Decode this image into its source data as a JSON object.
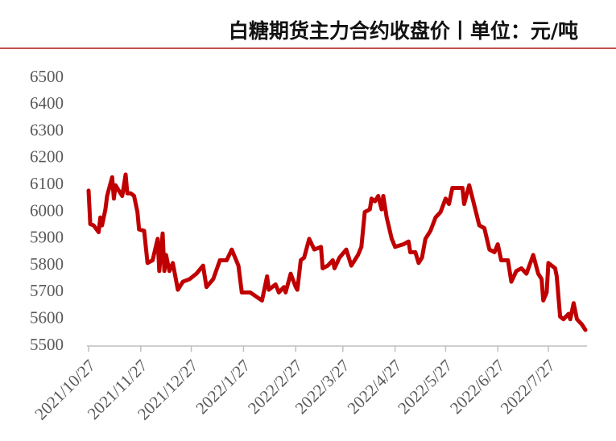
{
  "chart_data": {
    "type": "line",
    "title": "白糖期货主力合约收盘价丨单位：元/吨",
    "x": [
      "2021/10/27",
      "2021/10/28",
      "2021/10/30",
      "2021/11/2",
      "2021/11/3",
      "2021/11/4",
      "2021/11/6",
      "2021/11/7",
      "2021/11/10",
      "2021/11/11",
      "2021/11/12",
      "2021/11/14",
      "2021/11/16",
      "2021/11/18",
      "2021/11/19",
      "2021/11/21",
      "2021/11/23",
      "2021/11/25",
      "2021/11/26",
      "2021/11/29",
      "2021/12/1",
      "2021/12/4",
      "2021/12/7",
      "2021/12/8",
      "2021/12/10",
      "2021/12/11",
      "2021/12/12",
      "2021/12/14",
      "2021/12/16",
      "2021/12/19",
      "2021/12/22",
      "2021/12/26",
      "2021/12/30",
      "2022/1/3",
      "2022/1/5",
      "2022/1/9",
      "2022/1/13",
      "2022/1/17",
      "2022/1/20",
      "2022/1/24",
      "2022/1/26",
      "2022/1/31",
      "2022/2/7",
      "2022/2/10",
      "2022/2/11",
      "2022/2/15",
      "2022/2/17",
      "2022/2/20",
      "2022/2/21",
      "2022/2/24",
      "2022/2/27",
      "2022/2/28",
      "2022/3/2",
      "2022/3/4",
      "2022/3/7",
      "2022/3/10",
      "2022/3/14",
      "2022/3/15",
      "2022/3/18",
      "2022/3/21",
      "2022/3/22",
      "2022/3/25",
      "2022/3/29",
      "2022/4/1",
      "2022/4/5",
      "2022/4/7",
      "2022/4/9",
      "2022/4/12",
      "2022/4/13",
      "2022/4/15",
      "2022/4/17",
      "2022/4/19",
      "2022/4/20",
      "2022/4/22",
      "2022/4/25",
      "2022/4/27",
      "2022/5/2",
      "2022/5/5",
      "2022/5/6",
      "2022/5/9",
      "2022/5/11",
      "2022/5/13",
      "2022/5/15",
      "2022/5/18",
      "2022/5/21",
      "2022/5/24",
      "2022/5/27",
      "2022/5/29",
      "2022/5/31",
      "2022/6/6",
      "2022/6/7",
      "2022/6/10",
      "2022/6/12",
      "2022/6/14",
      "2022/6/16",
      "2022/6/19",
      "2022/6/22",
      "2022/6/25",
      "2022/6/27",
      "2022/6/29",
      "2022/7/3",
      "2022/7/5",
      "2022/7/8",
      "2022/7/11",
      "2022/7/14",
      "2022/7/18",
      "2022/7/21",
      "2022/7/23",
      "2022/7/24",
      "2022/7/26",
      "2022/7/27",
      "2022/7/31",
      "2022/8/1",
      "2022/8/3",
      "2022/8/5",
      "2022/8/8",
      "2022/8/9",
      "2022/8/11",
      "2022/8/13",
      "2022/8/16",
      "2022/8/18"
    ],
    "series": [
      {
        "color": "#c00000",
        "values": [
          6080,
          5955,
          5950,
          5925,
          5980,
          5950,
          6010,
          6060,
          6130,
          6050,
          6100,
          6080,
          6060,
          6140,
          6070,
          6070,
          6060,
          6000,
          5935,
          5930,
          5810,
          5820,
          5900,
          5780,
          5920,
          5780,
          5840,
          5780,
          5810,
          5710,
          5740,
          5750,
          5770,
          5800,
          5720,
          5750,
          5820,
          5820,
          5860,
          5800,
          5700,
          5700,
          5670,
          5760,
          5710,
          5730,
          5700,
          5720,
          5700,
          5770,
          5720,
          5710,
          5820,
          5830,
          5900,
          5860,
          5870,
          5790,
          5800,
          5820,
          5790,
          5830,
          5860,
          5800,
          5840,
          5870,
          6000,
          6010,
          6050,
          6040,
          6060,
          6010,
          6060,
          5980,
          5900,
          5870,
          5880,
          5890,
          5850,
          5850,
          5810,
          5830,
          5900,
          5930,
          5980,
          6000,
          6050,
          6030,
          6090,
          6090,
          6030,
          6100,
          6050,
          6000,
          5950,
          5940,
          5860,
          5850,
          5880,
          5820,
          5820,
          5740,
          5780,
          5790,
          5770,
          5840,
          5770,
          5750,
          5670,
          5700,
          5810,
          5790,
          5760,
          5610,
          5600,
          5620,
          5600,
          5660,
          5600,
          5580,
          5560
        ]
      }
    ],
    "xlim": [
      "2021/10/27",
      "2022/8/18"
    ],
    "xticks": [
      "2021/10/27",
      "2021/11/27",
      "2021/12/27",
      "2022/1/27",
      "2022/2/27",
      "2022/3/27",
      "2022/4/27",
      "2022/5/27",
      "2022/6/27",
      "2022/7/27"
    ],
    "ylim": [
      5500,
      6500
    ],
    "yticks": [
      5500,
      5600,
      5700,
      5800,
      5900,
      6000,
      6100,
      6200,
      6300,
      6400,
      6500
    ]
  }
}
